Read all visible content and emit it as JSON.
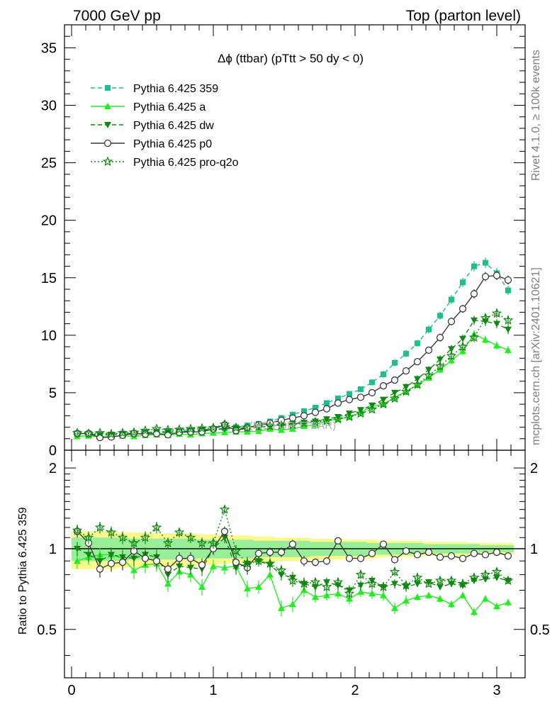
{
  "header": {
    "left": "7000 GeV pp",
    "right": "Top (parton level)"
  },
  "side_labels": {
    "rivet": "Rivet 4.1.0, ≥ 100k events",
    "mcplots": "mcplots.cern.ch [arXiv:2401.10621]"
  },
  "watermark": "(MC FOR TTBAR)",
  "colors": {
    "s359": "#1dbf8b",
    "a": "#22ee22",
    "dw": "#118811",
    "p0": "#3a3a3a",
    "proq2o": "#118811",
    "band_outer": "#fafa8c",
    "band_inner": "#99ee99"
  },
  "chart_data": [
    {
      "type": "line",
      "title": "Δϕ (ttbar) (pTtt > 50 dy < 0)",
      "xlabel": "",
      "ylabel": "",
      "xlim": [
        -0.05,
        3.2
      ],
      "ylim": [
        0,
        37
      ],
      "xticks": [
        0,
        1,
        2,
        3
      ],
      "yticks": [
        0,
        5,
        10,
        15,
        20,
        25,
        30,
        35
      ],
      "legend_position": "top-left",
      "x": [
        0.04,
        0.12,
        0.2,
        0.28,
        0.36,
        0.44,
        0.52,
        0.6,
        0.68,
        0.76,
        0.84,
        0.92,
        1.0,
        1.08,
        1.16,
        1.24,
        1.32,
        1.4,
        1.48,
        1.56,
        1.64,
        1.72,
        1.8,
        1.88,
        1.96,
        2.04,
        2.12,
        2.2,
        2.28,
        2.36,
        2.44,
        2.52,
        2.6,
        2.68,
        2.76,
        2.84,
        2.92,
        3.0,
        3.08
      ],
      "series": [
        {
          "key": "s359",
          "name": "Pythia 6.425 359",
          "style": "dashed",
          "marker": "square",
          "color": "#1dbf8b",
          "values": [
            1.45,
            1.45,
            1.35,
            1.35,
            1.45,
            1.5,
            1.55,
            1.6,
            1.65,
            1.7,
            1.75,
            1.8,
            1.85,
            1.9,
            2.0,
            2.15,
            2.3,
            2.5,
            2.8,
            3.1,
            3.4,
            3.7,
            4.1,
            4.5,
            4.9,
            5.3,
            5.9,
            6.6,
            7.6,
            8.4,
            9.3,
            10.5,
            11.7,
            13.1,
            14.6,
            16.0,
            16.3,
            15.4,
            13.9
          ],
          "errors": [
            0.15,
            0.15,
            0.15,
            0.15,
            0.15,
            0.15,
            0.15,
            0.15,
            0.15,
            0.15,
            0.15,
            0.15,
            0.15,
            0.15,
            0.15,
            0.15,
            0.15,
            0.2,
            0.2,
            0.2,
            0.2,
            0.2,
            0.2,
            0.25,
            0.25,
            0.25,
            0.25,
            0.3,
            0.3,
            0.3,
            0.3,
            0.35,
            0.35,
            0.4,
            0.4,
            0.45,
            0.45,
            0.45,
            0.4
          ]
        },
        {
          "key": "a",
          "name": "Pythia 6.425 a",
          "style": "solid",
          "marker": "triangle-up",
          "color": "#22ee22",
          "values": [
            1.2,
            1.25,
            1.15,
            1.2,
            1.25,
            1.2,
            1.3,
            1.35,
            1.3,
            1.4,
            1.35,
            1.45,
            1.5,
            1.55,
            1.6,
            1.6,
            1.65,
            1.85,
            1.75,
            1.85,
            2.1,
            2.2,
            2.6,
            2.7,
            2.9,
            3.3,
            3.8,
            4.0,
            4.6,
            5.1,
            5.7,
            6.3,
            7.0,
            7.8,
            8.6,
            10.1,
            9.6,
            9.1,
            8.7
          ],
          "errors": [
            0.15,
            0.15,
            0.15,
            0.15,
            0.15,
            0.15,
            0.15,
            0.15,
            0.15,
            0.15,
            0.15,
            0.15,
            0.15,
            0.15,
            0.15,
            0.15,
            0.15,
            0.15,
            0.15,
            0.2,
            0.2,
            0.2,
            0.2,
            0.2,
            0.2,
            0.25,
            0.25,
            0.25,
            0.25,
            0.3,
            0.3,
            0.3,
            0.3,
            0.35,
            0.35,
            0.35,
            0.35,
            0.35,
            0.35
          ]
        },
        {
          "key": "dw",
          "name": "Pythia 6.425 dw",
          "style": "dashed",
          "marker": "triangle-down",
          "color": "#118811",
          "values": [
            1.45,
            1.4,
            1.3,
            1.35,
            1.4,
            1.45,
            1.5,
            1.55,
            1.55,
            1.6,
            1.65,
            1.75,
            1.8,
            1.85,
            1.9,
            1.95,
            2.0,
            2.1,
            2.2,
            2.3,
            2.4,
            2.5,
            2.7,
            2.9,
            3.2,
            3.5,
            3.9,
            4.4,
            5.0,
            5.5,
            6.2,
            7.0,
            7.9,
            8.8,
            9.7,
            11.3,
            11.2,
            11.0,
            10.5
          ],
          "errors": [
            0.15,
            0.15,
            0.15,
            0.15,
            0.15,
            0.15,
            0.15,
            0.15,
            0.15,
            0.15,
            0.15,
            0.15,
            0.15,
            0.15,
            0.15,
            0.15,
            0.15,
            0.15,
            0.2,
            0.2,
            0.2,
            0.2,
            0.2,
            0.2,
            0.2,
            0.25,
            0.25,
            0.25,
            0.25,
            0.3,
            0.3,
            0.3,
            0.35,
            0.35,
            0.35,
            0.4,
            0.4,
            0.4,
            0.4
          ]
        },
        {
          "key": "p0",
          "name": "Pythia 6.425 p0",
          "style": "solid",
          "marker": "circle-open",
          "color": "#3a3a3a",
          "values": [
            1.45,
            1.45,
            1.1,
            1.15,
            1.3,
            1.45,
            1.4,
            1.45,
            1.35,
            1.55,
            1.6,
            1.6,
            1.85,
            2.2,
            1.7,
            1.95,
            2.2,
            2.35,
            2.6,
            2.8,
            3.0,
            3.3,
            3.6,
            4.1,
            4.4,
            4.6,
            5.0,
            5.6,
            6.1,
            6.9,
            7.7,
            8.7,
            9.8,
            11.2,
            12.3,
            13.6,
            15.1,
            15.2,
            14.8
          ],
          "errors": [
            0.15,
            0.15,
            0.15,
            0.15,
            0.15,
            0.15,
            0.15,
            0.15,
            0.15,
            0.15,
            0.15,
            0.15,
            0.15,
            0.15,
            0.15,
            0.15,
            0.15,
            0.15,
            0.2,
            0.2,
            0.2,
            0.2,
            0.2,
            0.2,
            0.2,
            0.25,
            0.25,
            0.25,
            0.25,
            0.3,
            0.3,
            0.3,
            0.35,
            0.35,
            0.35,
            0.4,
            0.4,
            0.4,
            0.4
          ]
        },
        {
          "key": "proq2o",
          "name": "Pythia 6.425 pro-q2o",
          "style": "dotted",
          "marker": "star-open",
          "color": "#118811",
          "values": [
            1.5,
            1.45,
            1.5,
            1.4,
            1.5,
            1.55,
            1.7,
            1.85,
            1.75,
            1.8,
            1.85,
            1.9,
            1.95,
            2.25,
            1.95,
            1.95,
            2.05,
            2.1,
            2.15,
            2.2,
            2.35,
            2.45,
            2.55,
            2.7,
            2.9,
            3.2,
            3.55,
            4.0,
            4.5,
            5.1,
            5.7,
            6.5,
            7.3,
            8.2,
            9.0,
            9.8,
            11.5,
            11.9,
            11.3
          ],
          "errors": [
            0.15,
            0.15,
            0.15,
            0.15,
            0.15,
            0.15,
            0.15,
            0.15,
            0.15,
            0.15,
            0.15,
            0.15,
            0.15,
            0.15,
            0.15,
            0.15,
            0.15,
            0.15,
            0.2,
            0.2,
            0.2,
            0.2,
            0.2,
            0.2,
            0.2,
            0.25,
            0.25,
            0.25,
            0.25,
            0.3,
            0.3,
            0.3,
            0.35,
            0.35,
            0.35,
            0.4,
            0.4,
            0.4,
            0.4
          ]
        }
      ]
    },
    {
      "type": "line",
      "title": "",
      "xlabel": "",
      "ylabel": "Ratio to Pythia 6.425 359",
      "xlim": [
        -0.05,
        3.2
      ],
      "ylim": [
        0.33,
        2.33
      ],
      "xticks": [
        0,
        1,
        2,
        3
      ],
      "yticks": [
        0.5,
        1,
        2
      ],
      "reference_line": 1,
      "band_outer": {
        "low": [
          0.84,
          0.84,
          0.84,
          0.84,
          0.85,
          0.85,
          0.85,
          0.86,
          0.86,
          0.86,
          0.86,
          0.87,
          0.87,
          0.88,
          0.88,
          0.88,
          0.89,
          0.89,
          0.9,
          0.9,
          0.9,
          0.91,
          0.91,
          0.91,
          0.92,
          0.92,
          0.92,
          0.93,
          0.93,
          0.93,
          0.93,
          0.94,
          0.94,
          0.94,
          0.94,
          0.95,
          0.95,
          0.95,
          0.95
        ],
        "high": [
          1.16,
          1.16,
          1.16,
          1.16,
          1.15,
          1.15,
          1.15,
          1.14,
          1.14,
          1.14,
          1.14,
          1.13,
          1.13,
          1.12,
          1.12,
          1.12,
          1.11,
          1.11,
          1.1,
          1.1,
          1.1,
          1.09,
          1.09,
          1.09,
          1.08,
          1.08,
          1.08,
          1.07,
          1.07,
          1.07,
          1.07,
          1.06,
          1.06,
          1.06,
          1.06,
          1.05,
          1.05,
          1.05,
          1.05
        ]
      },
      "band_inner": {
        "low": [
          0.9,
          0.9,
          0.9,
          0.9,
          0.9,
          0.91,
          0.91,
          0.91,
          0.91,
          0.91,
          0.91,
          0.92,
          0.92,
          0.92,
          0.92,
          0.92,
          0.93,
          0.93,
          0.93,
          0.93,
          0.93,
          0.94,
          0.94,
          0.94,
          0.94,
          0.94,
          0.95,
          0.95,
          0.95,
          0.95,
          0.95,
          0.96,
          0.96,
          0.96,
          0.96,
          0.96,
          0.97,
          0.97,
          0.97
        ],
        "high": [
          1.1,
          1.1,
          1.1,
          1.1,
          1.1,
          1.09,
          1.09,
          1.09,
          1.09,
          1.09,
          1.09,
          1.08,
          1.08,
          1.08,
          1.08,
          1.08,
          1.07,
          1.07,
          1.07,
          1.07,
          1.07,
          1.06,
          1.06,
          1.06,
          1.06,
          1.06,
          1.05,
          1.05,
          1.05,
          1.05,
          1.05,
          1.04,
          1.04,
          1.04,
          1.04,
          1.04,
          1.03,
          1.03,
          1.03
        ]
      },
      "series": [
        {
          "key": "a",
          "name": "Pythia 6.425 a",
          "style": "solid",
          "marker": "triangle-up",
          "color": "#22ee22",
          "values": [
            0.9,
            0.93,
            0.95,
            0.95,
            0.92,
            0.83,
            0.87,
            0.88,
            0.74,
            0.82,
            0.8,
            0.72,
            0.86,
            0.85,
            0.86,
            0.71,
            0.72,
            0.8,
            0.6,
            0.62,
            0.7,
            0.66,
            0.67,
            0.68,
            0.65,
            0.69,
            0.68,
            0.67,
            0.6,
            0.64,
            0.66,
            0.67,
            0.65,
            0.62,
            0.67,
            0.58,
            0.65,
            0.61,
            0.63
          ],
          "errors": [
            0.06,
            0.06,
            0.06,
            0.06,
            0.06,
            0.06,
            0.06,
            0.06,
            0.05,
            0.05,
            0.05,
            0.05,
            0.05,
            0.05,
            0.05,
            0.05,
            0.04,
            0.04,
            0.04,
            0.04,
            0.04,
            0.03,
            0.03,
            0.03,
            0.03,
            0.03,
            0.03,
            0.03,
            0.03,
            0.03,
            0.02,
            0.02,
            0.02,
            0.02,
            0.02,
            0.02,
            0.02,
            0.02,
            0.02
          ]
        },
        {
          "key": "dw",
          "name": "Pythia 6.425 dw",
          "style": "dashed",
          "marker": "triangle-down",
          "color": "#118811",
          "values": [
            1.0,
            0.95,
            0.9,
            0.95,
            0.93,
            0.92,
            0.95,
            0.93,
            0.8,
            0.86,
            0.85,
            0.84,
            1.0,
            1.1,
            0.85,
            0.88,
            0.9,
            0.87,
            0.8,
            0.78,
            0.74,
            0.72,
            0.75,
            0.73,
            0.7,
            0.73,
            0.76,
            0.72,
            0.74,
            0.72,
            0.74,
            0.75,
            0.72,
            0.74,
            0.73,
            0.76,
            0.77,
            0.78,
            0.76
          ],
          "errors": [
            0.06,
            0.06,
            0.06,
            0.06,
            0.06,
            0.06,
            0.06,
            0.06,
            0.05,
            0.05,
            0.05,
            0.05,
            0.05,
            0.05,
            0.05,
            0.05,
            0.04,
            0.04,
            0.04,
            0.04,
            0.04,
            0.03,
            0.03,
            0.03,
            0.03,
            0.03,
            0.03,
            0.03,
            0.03,
            0.03,
            0.02,
            0.02,
            0.02,
            0.02,
            0.02,
            0.02,
            0.02,
            0.02,
            0.02
          ]
        },
        {
          "key": "p0",
          "name": "Pythia 6.425 p0",
          "style": "solid",
          "marker": "circle-open",
          "color": "#3a3a3a",
          "values": [
            1.16,
            1.05,
            0.84,
            0.88,
            0.89,
            0.98,
            0.92,
            0.9,
            0.84,
            0.92,
            0.92,
            0.87,
            1.0,
            1.16,
            0.89,
            0.85,
            0.96,
            0.97,
            0.97,
            1.04,
            0.9,
            0.89,
            0.9,
            1.07,
            0.92,
            0.92,
            0.96,
            1.04,
            0.91,
            0.98,
            0.95,
            0.97,
            0.93,
            0.94,
            0.92,
            0.96,
            0.95,
            0.97,
            0.94
          ],
          "errors": [
            0.06,
            0.06,
            0.06,
            0.06,
            0.06,
            0.06,
            0.06,
            0.06,
            0.05,
            0.05,
            0.05,
            0.05,
            0.05,
            0.05,
            0.05,
            0.05,
            0.04,
            0.04,
            0.04,
            0.04,
            0.04,
            0.03,
            0.03,
            0.03,
            0.03,
            0.03,
            0.03,
            0.03,
            0.03,
            0.03,
            0.02,
            0.02,
            0.02,
            0.02,
            0.02,
            0.02,
            0.02,
            0.02,
            0.02
          ]
        },
        {
          "key": "proq2o",
          "name": "Pythia 6.425 pro-q2o",
          "style": "dotted",
          "marker": "star-open",
          "color": "#118811",
          "values": [
            1.17,
            1.1,
            1.2,
            1.15,
            1.1,
            1.05,
            1.1,
            1.2,
            1.05,
            1.15,
            1.1,
            1.05,
            1.05,
            1.4,
            0.98,
            0.88,
            0.9,
            0.88,
            0.83,
            0.76,
            0.74,
            0.75,
            0.72,
            0.75,
            0.68,
            0.8,
            0.74,
            0.72,
            0.82,
            0.73,
            0.78,
            0.74,
            0.76,
            0.76,
            0.74,
            0.78,
            0.8,
            0.82,
            0.76
          ],
          "errors": [
            0.06,
            0.06,
            0.06,
            0.06,
            0.06,
            0.06,
            0.06,
            0.06,
            0.05,
            0.05,
            0.05,
            0.05,
            0.05,
            0.05,
            0.05,
            0.05,
            0.04,
            0.04,
            0.04,
            0.04,
            0.04,
            0.03,
            0.03,
            0.03,
            0.03,
            0.03,
            0.03,
            0.03,
            0.03,
            0.03,
            0.02,
            0.02,
            0.02,
            0.02,
            0.02,
            0.02,
            0.02,
            0.02,
            0.02
          ]
        }
      ]
    }
  ]
}
